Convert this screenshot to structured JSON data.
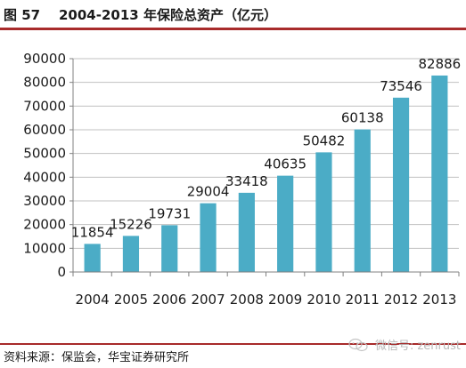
{
  "header": {
    "figure_label": "图 57",
    "title": "2004-2013 年保险总资产（亿元）"
  },
  "footer": {
    "source": "资料来源：保监会，华宝证券研究所",
    "watermark": "微信号: zenrust"
  },
  "colors": {
    "bar": "#4bacc6",
    "accent_rule": "#a82b2b",
    "gridline": "#c0c0c0",
    "text": "#1a1a1a"
  },
  "chart_data": {
    "type": "bar",
    "title": "2004-2013 年保险总资产（亿元）",
    "categories": [
      "2004",
      "2005",
      "2006",
      "2007",
      "2008",
      "2009",
      "2010",
      "2011",
      "2012",
      "2013"
    ],
    "values": [
      11854,
      15226,
      19731,
      29004,
      33418,
      40635,
      50482,
      60138,
      73546,
      82886
    ],
    "data_labels": [
      "11854",
      "15226",
      "19731",
      "29004",
      "33418",
      "40635",
      "50482",
      "60138",
      "73546",
      "82886"
    ],
    "yticks": [
      "0",
      "10000",
      "20000",
      "30000",
      "40000",
      "50000",
      "60000",
      "70000",
      "80000",
      "90000"
    ],
    "ylim": [
      0,
      90000
    ],
    "grid": true,
    "legend": "none",
    "xlabel": "",
    "ylabel": ""
  }
}
